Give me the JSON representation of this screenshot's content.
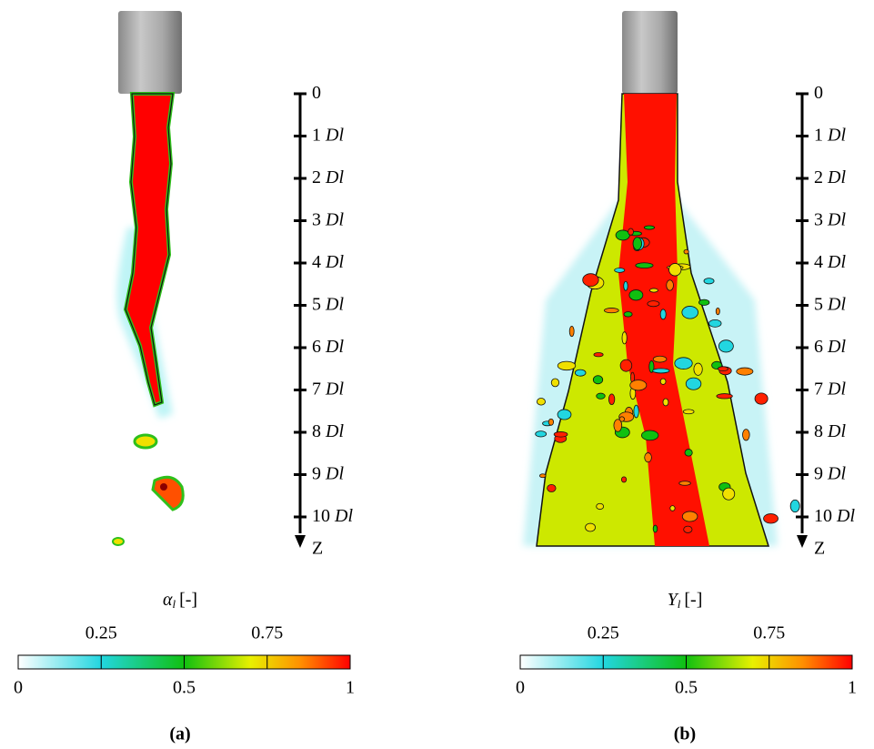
{
  "panels": [
    {
      "caption": "(a)",
      "axis": {
        "ticks": [
          0,
          1,
          2,
          3,
          4,
          5,
          6,
          7,
          8,
          9,
          10
        ],
        "unit": "D",
        "unit_sub": "l",
        "end_label": "Z"
      },
      "colorbar": {
        "symbol": "α",
        "symbol_sub": "l",
        "unit": "[-]",
        "range": [
          0,
          1
        ],
        "ticks": [
          0,
          0.25,
          0.5,
          0.75,
          1
        ]
      }
    },
    {
      "caption": "(b)",
      "axis": {
        "ticks": [
          0,
          1,
          2,
          3,
          4,
          5,
          6,
          7,
          8,
          9,
          10
        ],
        "unit": "D",
        "unit_sub": "l",
        "end_label": "Z"
      },
      "colorbar": {
        "symbol": "Y",
        "symbol_sub": "l",
        "unit": "[-]",
        "range": [
          0,
          1
        ],
        "ticks": [
          0,
          0.25,
          0.5,
          0.75,
          1
        ]
      }
    }
  ]
}
